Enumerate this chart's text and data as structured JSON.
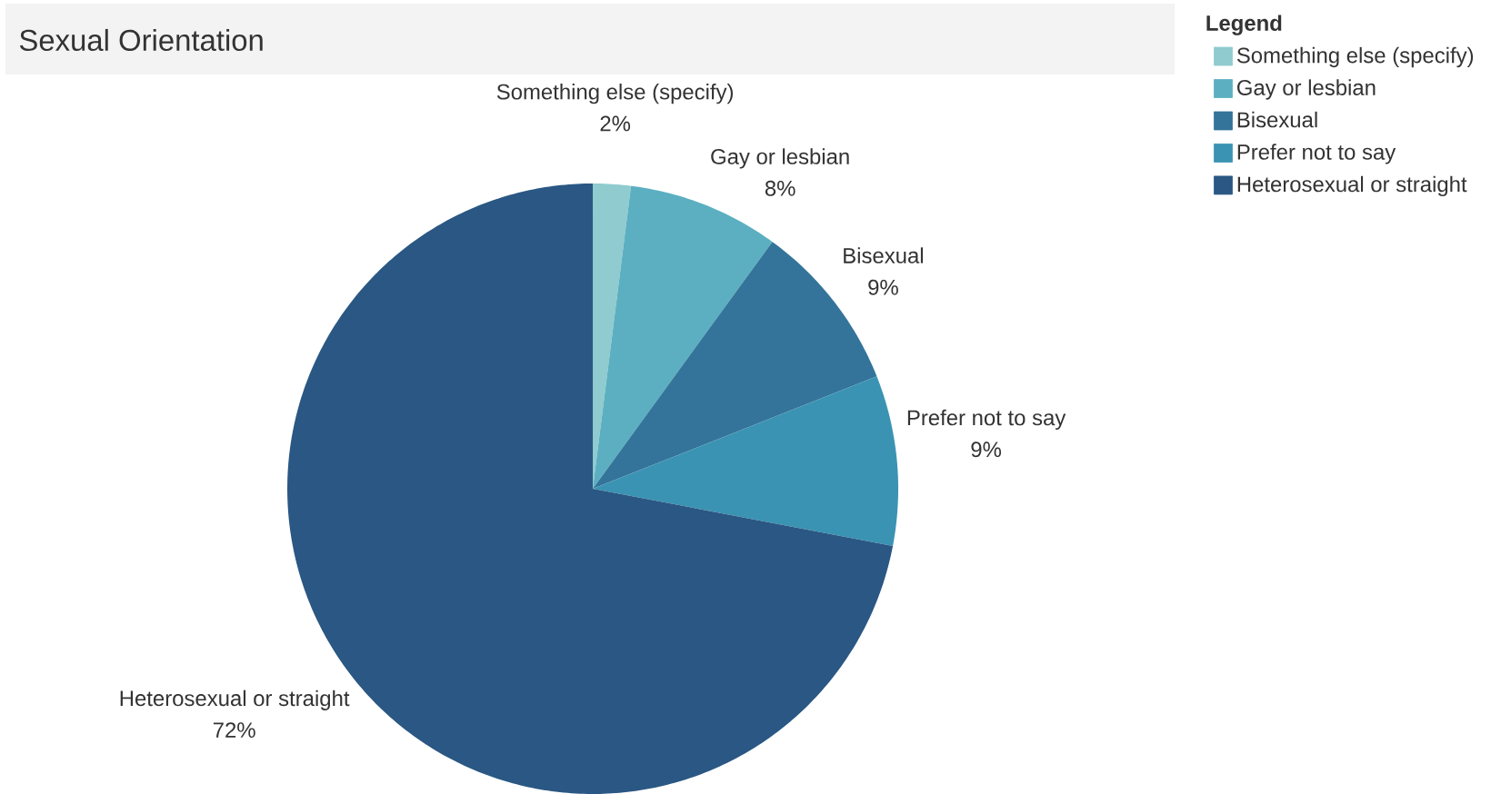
{
  "chart_data": {
    "type": "pie",
    "title": "Sexual Orientation",
    "legend_title": "Legend",
    "categories": [
      "Something else (specify)",
      "Gay or lesbian",
      "Bisexual",
      "Prefer not to say",
      "Heterosexual or straight"
    ],
    "values": [
      2,
      8,
      9,
      9,
      72
    ],
    "value_labels": [
      "2%",
      "8%",
      "9%",
      "9%",
      "72%"
    ],
    "colors": [
      "#8fcbcf",
      "#5bafc1",
      "#34749a",
      "#3b93b3",
      "#2a5783"
    ],
    "legend": "top right"
  }
}
